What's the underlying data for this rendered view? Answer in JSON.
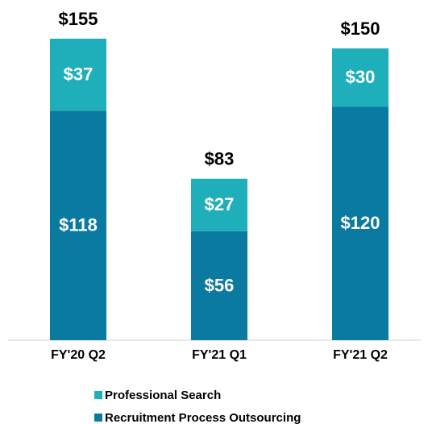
{
  "chart_data": {
    "type": "stacked_bar",
    "categories": [
      "FY'20 Q2",
      "FY'21 Q1",
      "FY'21 Q2"
    ],
    "series": [
      {
        "name": "Professional Search",
        "color": "#1fafbb",
        "values": [
          37,
          27,
          30
        ],
        "value_labels": [
          "$37",
          "$27",
          "$30"
        ]
      },
      {
        "name": "Recruitment Process Outsourcing",
        "color": "#0b7aa1",
        "values": [
          118,
          56,
          120
        ],
        "value_labels": [
          "$118",
          "$56",
          "$120"
        ]
      }
    ],
    "totals": [
      155,
      83,
      150
    ],
    "total_labels": [
      "$155",
      "$83",
      "$150"
    ],
    "ylim": [
      0,
      155
    ],
    "grid": false
  }
}
